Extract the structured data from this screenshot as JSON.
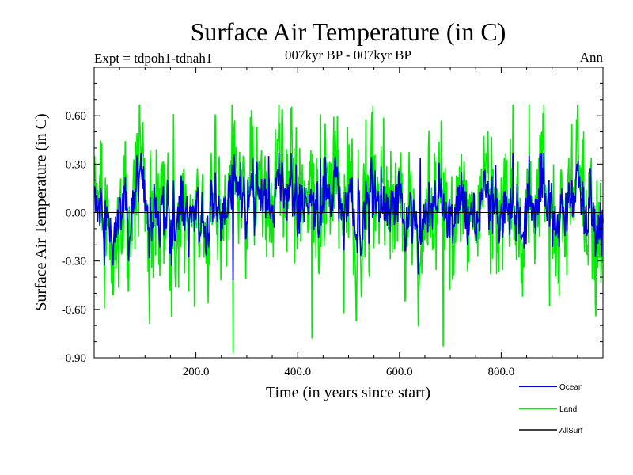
{
  "chart_data": {
    "type": "line",
    "title": "Surface Air Temperature (in C)",
    "subtitle": "007kyr BP - 007kyr BP",
    "expt_label": "Expt = tdpoh1-tdnah1",
    "season_label": "Ann",
    "xlabel": "Time (in years since start)",
    "ylabel": "Surface Air Temperature (in C)",
    "xlim": [
      0,
      1000
    ],
    "ylim": [
      -0.9,
      0.9
    ],
    "xticks": [
      200,
      400,
      600,
      800
    ],
    "xtick_labels": [
      "200.0",
      "400.0",
      "600.0",
      "800.0"
    ],
    "yticks": [
      -0.9,
      -0.6,
      -0.3,
      0.0,
      0.3,
      0.6
    ],
    "ytick_labels": [
      "-0.90",
      "-0.60",
      "-0.30",
      "0.00",
      "0.30",
      "0.60"
    ],
    "zero_line": true,
    "grid": false,
    "legend_position": "bottom-right",
    "series": [
      {
        "name": "Ocean",
        "color": "#0000dd",
        "amplitude": 0.13,
        "range": [
          -0.42,
          0.37
        ],
        "extremes": [
          {
            "x": 272,
            "y": -0.42
          },
          {
            "x": 342,
            "y": 0.35
          },
          {
            "x": 640,
            "y": 0.34
          },
          {
            "x": 822,
            "y": 0.37
          }
        ]
      },
      {
        "name": "Land",
        "color": "#00ee00",
        "amplitude": 0.26,
        "range": [
          -0.87,
          0.67
        ],
        "extremes": [
          {
            "x": 155,
            "y": 0.61
          },
          {
            "x": 272,
            "y": -0.87
          },
          {
            "x": 427,
            "y": -0.78
          },
          {
            "x": 685,
            "y": -0.83
          },
          {
            "x": 822,
            "y": 0.67
          }
        ]
      },
      {
        "name": "AllSurf",
        "color": "#000000",
        "amplitude": 0.0,
        "range": [
          0.0,
          0.0
        ]
      }
    ]
  }
}
